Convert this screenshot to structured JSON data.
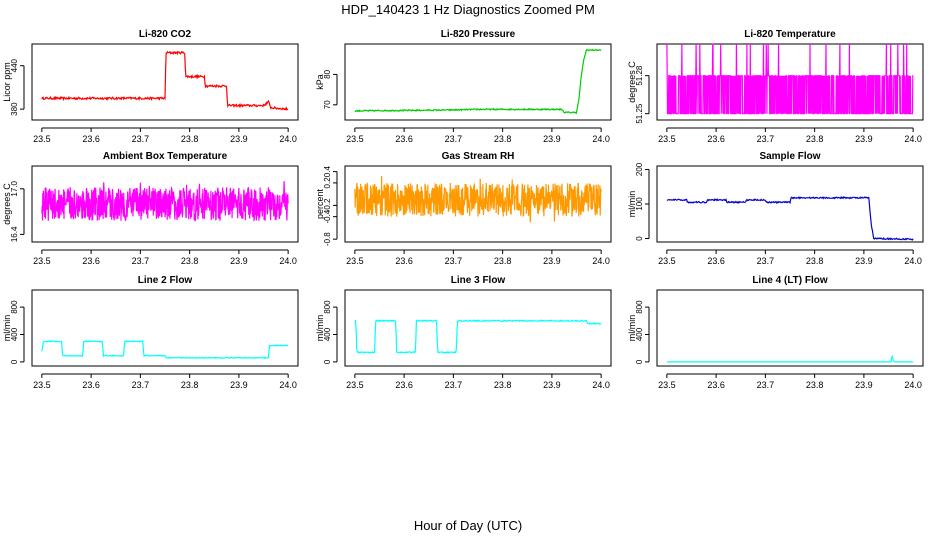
{
  "page_title": "HDP_140423  1 Hz Diagnostics Zoomed PM",
  "x_axis_label": "Hour of Day (UTC)",
  "chart_data": [
    {
      "type": "line",
      "title": "Li-820 CO2",
      "ylabel": "Licor ppm",
      "color": "#ff0000",
      "xlim": [
        23.5,
        24.0
      ],
      "ylim": [
        365,
        470
      ],
      "xticks": [
        "23.5",
        "23.6",
        "23.7",
        "23.8",
        "23.9",
        "24.0"
      ],
      "yticks": [
        "380",
        "440"
      ],
      "x": [
        23.5,
        23.75,
        23.752,
        23.79,
        23.792,
        23.83,
        23.832,
        23.875,
        23.877,
        23.95,
        23.96,
        23.965,
        24.0
      ],
      "y": [
        395,
        395,
        458,
        458,
        425,
        425,
        412,
        412,
        385,
        385,
        390,
        382,
        380
      ],
      "noise": 1.5
    },
    {
      "type": "line",
      "title": "Li-820 Pressure",
      "ylabel": "kPa",
      "color": "#00cc00",
      "xlim": [
        23.5,
        24.0
      ],
      "ylim": [
        65,
        90
      ],
      "xticks": [
        "23.5",
        "23.6",
        "23.7",
        "23.8",
        "23.9",
        "24.0"
      ],
      "yticks": [
        "70",
        "80"
      ],
      "x": [
        23.5,
        23.7,
        23.75,
        23.92,
        23.925,
        23.95,
        23.955,
        23.96,
        23.965,
        23.97,
        24.0
      ],
      "y": [
        68.0,
        68.3,
        68.5,
        68.5,
        67.5,
        67.5,
        72,
        80,
        85,
        88,
        88
      ],
      "noise": 0.2
    },
    {
      "type": "noise",
      "title": "Li-820 Temperature",
      "ylabel": "degrees C",
      "color": "#ff00ff",
      "xlim": [
        23.5,
        24.0
      ],
      "ylim": [
        51.245,
        51.305
      ],
      "xticks": [
        "23.5",
        "23.6",
        "23.7",
        "23.8",
        "23.9",
        "24.0"
      ],
      "yticks": [
        "51.25",
        "51.28"
      ],
      "levels": [
        51.25,
        51.28
      ],
      "spike_level": 51.31
    },
    {
      "type": "noise",
      "title": "Ambient Box Temperature",
      "ylabel": "degrees C",
      "color": "#ff00ff",
      "xlim": [
        23.5,
        24.0
      ],
      "ylim": [
        16.3,
        17.3
      ],
      "xticks": [
        "23.5",
        "23.6",
        "23.7",
        "23.8",
        "23.9",
        "24.0"
      ],
      "yticks": [
        "16.4",
        "17.0"
      ],
      "center": 16.8,
      "spread": 0.22
    },
    {
      "type": "noise",
      "title": "Gas Stream RH",
      "ylabel": "percent",
      "color": "#ff9900",
      "xlim": [
        23.5,
        24.0
      ],
      "ylim": [
        -0.85,
        0.5
      ],
      "xticks": [
        "23.5",
        "23.6",
        "23.7",
        "23.8",
        "23.9",
        "24.0"
      ],
      "yticks": [
        "-0.8",
        "-0.4",
        "-0.2",
        "0.2",
        "0.4"
      ],
      "center": -0.1,
      "spread": 0.3
    },
    {
      "type": "line",
      "title": "Sample Flow",
      "ylabel": "ml/min",
      "color": "#0000cc",
      "xlim": [
        23.5,
        24.0
      ],
      "ylim": [
        -10,
        210
      ],
      "xticks": [
        "23.5",
        "23.6",
        "23.7",
        "23.8",
        "23.9",
        "24.0"
      ],
      "yticks": [
        "0",
        "100",
        "200"
      ],
      "x": [
        23.5,
        23.54,
        23.542,
        23.58,
        23.582,
        23.62,
        23.622,
        23.66,
        23.662,
        23.7,
        23.702,
        23.75,
        23.752,
        23.91,
        23.915,
        23.92,
        24.0
      ],
      "y": [
        112,
        112,
        105,
        105,
        112,
        112,
        105,
        105,
        112,
        112,
        105,
        105,
        118,
        118,
        40,
        0,
        -2
      ],
      "noise": 2
    },
    {
      "type": "line",
      "title": "Line 2 Flow",
      "ylabel": "ml/min",
      "color": "#00ffff",
      "xlim": [
        23.5,
        24.0
      ],
      "ylim": [
        -60,
        1050
      ],
      "xticks": [
        "23.5",
        "23.6",
        "23.7",
        "23.8",
        "23.9",
        "24.0"
      ],
      "yticks": [
        "0",
        "400",
        "800"
      ],
      "x": [
        23.5,
        23.503,
        23.54,
        23.542,
        23.583,
        23.585,
        23.623,
        23.625,
        23.666,
        23.668,
        23.705,
        23.707,
        23.75,
        23.752,
        23.96,
        23.962,
        24.0
      ],
      "y": [
        150,
        300,
        300,
        90,
        90,
        300,
        300,
        90,
        90,
        300,
        300,
        90,
        90,
        60,
        60,
        240,
        240
      ],
      "noise": 6
    },
    {
      "type": "line",
      "title": "Line 3 Flow",
      "ylabel": "ml/min",
      "color": "#00ffff",
      "xlim": [
        23.5,
        24.0
      ],
      "ylim": [
        -60,
        1050
      ],
      "xticks": [
        "23.5",
        "23.6",
        "23.7",
        "23.8",
        "23.9",
        "24.0"
      ],
      "yticks": [
        "0",
        "400",
        "800"
      ],
      "x": [
        23.5,
        23.502,
        23.504,
        23.54,
        23.542,
        23.583,
        23.585,
        23.623,
        23.625,
        23.666,
        23.668,
        23.706,
        23.708,
        23.75,
        23.97,
        23.972,
        24.0
      ],
      "y": [
        600,
        600,
        140,
        140,
        600,
        600,
        140,
        140,
        600,
        600,
        140,
        140,
        600,
        600,
        600,
        560,
        560
      ],
      "noise": 8
    },
    {
      "type": "line",
      "title": "Line 4 (LT) Flow",
      "ylabel": "ml/min",
      "color": "#00ffff",
      "xlim": [
        23.5,
        24.0
      ],
      "ylim": [
        -60,
        1050
      ],
      "xticks": [
        "23.5",
        "23.6",
        "23.7",
        "23.8",
        "23.9",
        "24.0"
      ],
      "yticks": [
        "0",
        "400",
        "800"
      ],
      "x": [
        23.5,
        23.955,
        23.957,
        23.96,
        23.962,
        24.0
      ],
      "y": [
        0,
        0,
        90,
        20,
        0,
        0
      ],
      "noise": 0
    }
  ]
}
